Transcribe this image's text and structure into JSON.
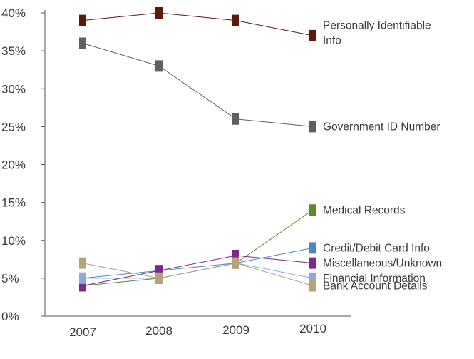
{
  "chart_data": {
    "type": "line",
    "title": "",
    "xlabel": "",
    "ylabel": "",
    "categories": [
      "2007",
      "2008",
      "2009",
      "2010"
    ],
    "ylim": [
      0,
      40
    ],
    "yticks": [
      "0%",
      "5%",
      "10%",
      "15%",
      "20%",
      "25%",
      "30%",
      "35%",
      "40%"
    ],
    "grid": false,
    "legend": "end-of-line labels",
    "series": [
      {
        "name": "Personally Identifiable Info",
        "label_lines": [
          "Personally Identifiable",
          "Info"
        ],
        "color": "#5c1a0b",
        "values": [
          39,
          40,
          39,
          37
        ]
      },
      {
        "name": "Government ID Number",
        "label_lines": [
          "Government ID Number"
        ],
        "color": "#5f5f66",
        "values": [
          36,
          33,
          26,
          25
        ]
      },
      {
        "name": "Medical Records",
        "label_lines": [
          "Medical Records"
        ],
        "color": "#5a8a2a",
        "values": [
          4,
          5,
          7,
          14
        ]
      },
      {
        "name": "Credit/Debit Card Info",
        "label_lines": [
          "Credit/Debit Card Info"
        ],
        "color": "#4f86c6",
        "values": [
          5,
          6,
          7,
          9
        ]
      },
      {
        "name": "Miscellaneous/Unknown",
        "label_lines": [
          "Miscellaneous/Unknown"
        ],
        "color": "#7b2a8a",
        "values": [
          4,
          6,
          8,
          7
        ]
      },
      {
        "name": "Financial Information",
        "label_lines": [
          "Financial Information"
        ],
        "color": "#8aa9dc",
        "values": [
          5,
          5,
          7,
          5
        ]
      },
      {
        "name": "Bank Account Details",
        "label_lines": [
          "Bank Account Details"
        ],
        "color": "#b4a47c",
        "values": [
          7,
          5,
          7,
          4
        ]
      }
    ]
  }
}
